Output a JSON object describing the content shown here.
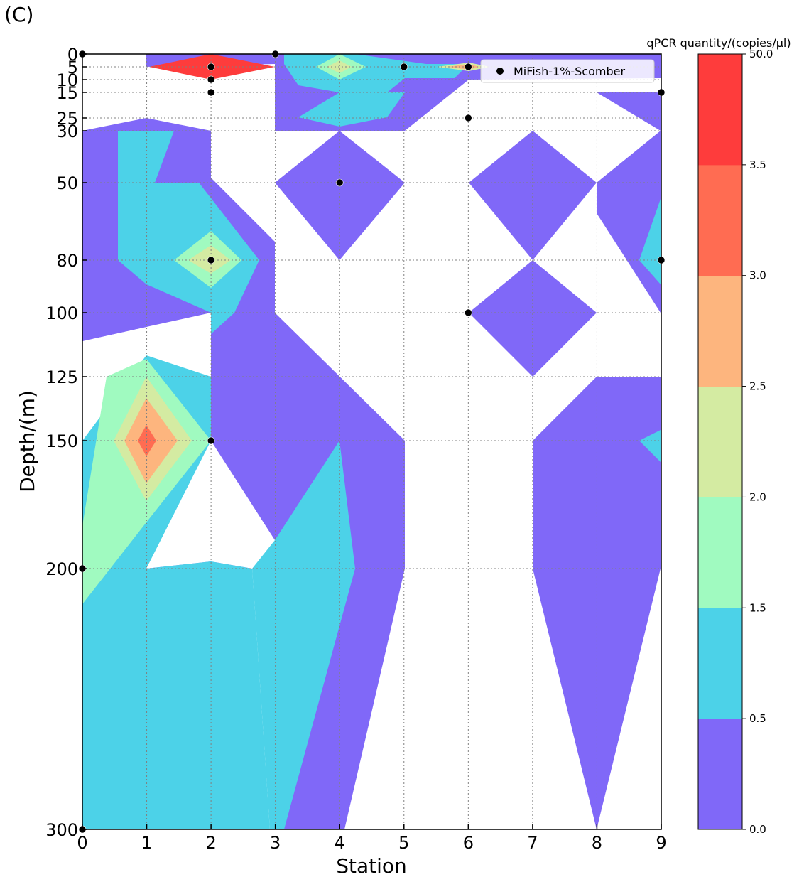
{
  "panel_label": "(C)",
  "chart_data": {
    "type": "contour",
    "xlabel": "Station",
    "ylabel": "Depth/(m)",
    "colorbar_title": "qPCR quantity/(copies/μl)",
    "x_ticks": [
      "0",
      "1",
      "2",
      "3",
      "4",
      "5",
      "6",
      "7",
      "8",
      "9"
    ],
    "y_ticks": [
      {
        "value": 0,
        "label": "0"
      },
      {
        "value": 5,
        "label": "5"
      },
      {
        "value": 10,
        "label": "10"
      },
      {
        "value": 15,
        "label": "15"
      },
      {
        "value": 25,
        "label": "25"
      },
      {
        "value": 30,
        "label": "30"
      },
      {
        "value": 50,
        "label": "50"
      },
      {
        "value": 80,
        "label": "80"
      },
      {
        "value": 100,
        "label": "100"
      },
      {
        "value": 125,
        "label": "125"
      },
      {
        "value": 150,
        "label": "150"
      },
      {
        "value": 200,
        "label": "200"
      },
      {
        "value": 300,
        "label": "300"
      }
    ],
    "xlim": [
      0,
      9
    ],
    "ylim": [
      300,
      0
    ],
    "depth_axis_scale": "non-uniform (tick positions spaced by depth index)",
    "grid": true,
    "legend": {
      "label": "MiFish-1%-Scomber",
      "placement": "top-right"
    },
    "levels": [
      {
        "lo": 0.0,
        "hi": 0.5,
        "color": "#8068f8"
      },
      {
        "lo": 0.5,
        "hi": 1.5,
        "color": "#4cd2e8"
      },
      {
        "lo": 1.5,
        "hi": 2.0,
        "color": "#a0fac0"
      },
      {
        "lo": 2.0,
        "hi": 2.5,
        "color": "#d4eba2"
      },
      {
        "lo": 2.5,
        "hi": 3.0,
        "color": "#fdb57e"
      },
      {
        "lo": 3.0,
        "hi": 3.5,
        "color": "#ff6c52"
      },
      {
        "lo": 3.5,
        "hi": 50.0,
        "color": "#fe3c3c"
      }
    ],
    "colorbar_ticks": [
      "0.0",
      "0.5",
      "1.5",
      "2.0",
      "2.5",
      "3.0",
      "3.5",
      "50.0"
    ],
    "sample_points": [
      {
        "station": 0,
        "depth": 0
      },
      {
        "station": 3,
        "depth": 0
      },
      {
        "station": 2,
        "depth": 5
      },
      {
        "station": 5,
        "depth": 5
      },
      {
        "station": 6,
        "depth": 5
      },
      {
        "station": 2,
        "depth": 10
      },
      {
        "station": 2,
        "depth": 15
      },
      {
        "station": 9,
        "depth": 15
      },
      {
        "station": 6,
        "depth": 25
      },
      {
        "station": 4,
        "depth": 50
      },
      {
        "station": 2,
        "depth": 80
      },
      {
        "station": 9,
        "depth": 80
      },
      {
        "station": 6,
        "depth": 100
      },
      {
        "station": 2,
        "depth": 150
      },
      {
        "station": 0,
        "depth": 200
      },
      {
        "station": 0,
        "depth": 300
      }
    ]
  }
}
